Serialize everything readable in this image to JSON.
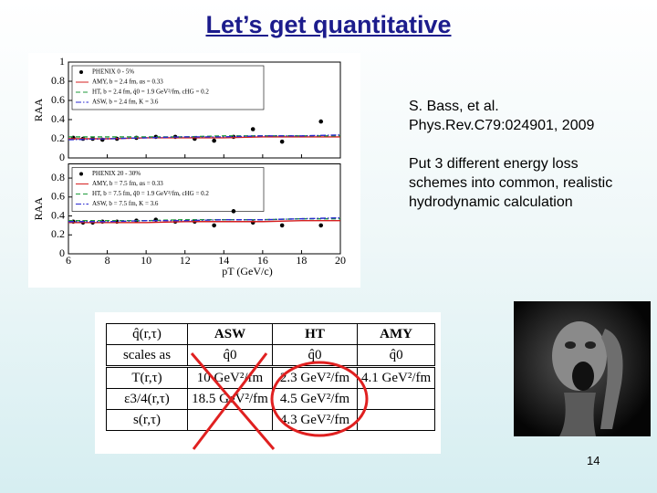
{
  "title": "Let’s get quantitative",
  "figure": {
    "xlim": [
      6,
      20
    ],
    "xticks": [
      6,
      8,
      10,
      12,
      14,
      16,
      18,
      20
    ],
    "xlabel": "pT (GeV/c)",
    "panels": [
      {
        "ylabel": "RAA",
        "ylim": [
          0,
          1
        ],
        "yticks": [
          0,
          0.2,
          0.4,
          0.6,
          0.8,
          1
        ],
        "series": [
          {
            "name": "PHENIX 0 - 5%",
            "color": "#000000",
            "style": "points",
            "x": [
              6.25,
              6.75,
              7.25,
              7.75,
              8.5,
              9.5,
              10.5,
              11.5,
              12.5,
              13.5,
              14.5,
              15.5,
              17,
              19
            ],
            "values": [
              0.21,
              0.2,
              0.2,
              0.19,
              0.2,
              0.21,
              0.22,
              0.22,
              0.2,
              0.18,
              0.22,
              0.3,
              0.17,
              0.38
            ]
          },
          {
            "name": "AMY, b = 2.4 fm, αs = 0.33",
            "color": "#d62020",
            "style": "solid",
            "x": [
              6,
              8,
              10,
              12,
              14,
              16,
              18,
              20
            ],
            "values": [
              0.2,
              0.2,
              0.21,
              0.21,
              0.21,
              0.22,
              0.22,
              0.22
            ]
          },
          {
            "name": "HT, b = 2.4 fm, q̂0 = 1.9 GeV²/fm, cHG = 0.2",
            "color": "#1e9a3a",
            "style": "dashed",
            "x": [
              6,
              8,
              10,
              12,
              14,
              16,
              18,
              20
            ],
            "values": [
              0.22,
              0.22,
              0.22,
              0.22,
              0.23,
              0.23,
              0.23,
              0.23
            ]
          },
          {
            "name": "ASW, b = 2.4 fm, K = 3.6",
            "color": "#2a2ad0",
            "style": "dashdot",
            "x": [
              6,
              8,
              10,
              12,
              14,
              16,
              18,
              20
            ],
            "values": [
              0.19,
              0.2,
              0.21,
              0.22,
              0.22,
              0.23,
              0.23,
              0.24
            ]
          }
        ]
      },
      {
        "ylabel": "RAA",
        "ylim": [
          0,
          0.95
        ],
        "yticks": [
          0,
          0.2,
          0.4,
          0.6,
          0.8
        ],
        "series": [
          {
            "name": "PHENIX 20 - 30%",
            "color": "#000000",
            "style": "points",
            "x": [
              6.25,
              6.75,
              7.25,
              7.75,
              8.5,
              9.5,
              10.5,
              11.5,
              12.5,
              13.5,
              14.5,
              15.5,
              17,
              19
            ],
            "values": [
              0.34,
              0.33,
              0.33,
              0.34,
              0.34,
              0.35,
              0.36,
              0.34,
              0.34,
              0.3,
              0.45,
              0.33,
              0.3,
              0.3
            ]
          },
          {
            "name": "AMY, b = 7.5 fm, αs = 0.33",
            "color": "#d62020",
            "style": "solid",
            "x": [
              6,
              8,
              10,
              12,
              14,
              16,
              18,
              20
            ],
            "values": [
              0.33,
              0.33,
              0.33,
              0.34,
              0.34,
              0.34,
              0.35,
              0.35
            ]
          },
          {
            "name": "HT, b = 7.5 fm, q̂0 = 1.9 GeV²/fm, cHG = 0.2",
            "color": "#1e9a3a",
            "style": "dashed",
            "x": [
              6,
              8,
              10,
              12,
              14,
              16,
              18,
              20
            ],
            "values": [
              0.35,
              0.35,
              0.35,
              0.36,
              0.36,
              0.36,
              0.37,
              0.37
            ]
          },
          {
            "name": "ASW, b = 7.5 fm, K = 3.6",
            "color": "#2a2ad0",
            "style": "dashdot",
            "x": [
              6,
              8,
              10,
              12,
              14,
              16,
              18,
              20
            ],
            "values": [
              0.34,
              0.34,
              0.35,
              0.35,
              0.36,
              0.36,
              0.37,
              0.38
            ]
          }
        ]
      }
    ]
  },
  "reference": [
    "S. Bass, et al.",
    "Phys.Rev.C79:024901, 2009"
  ],
  "description": [
    "Put 3 different energy loss",
    "schemes into common, realistic",
    "hydrodynamic calculation"
  ],
  "table": {
    "rows": [
      [
        "q̂(r,τ)",
        "ASW",
        "HT",
        "AMY"
      ],
      [
        "scales as",
        "q̂0",
        "q̂0",
        "q̂0"
      ],
      [
        "T(r,τ)",
        "10 GeV²/fm",
        "2.3 GeV²/fm",
        "4.1 GeV²/fm"
      ],
      [
        "ε3/4(r,τ)",
        "18.5 GeV²/fm",
        "4.5 GeV²/fm",
        null
      ],
      [
        "s(r,τ)",
        null,
        "4.3 GeV²/fm",
        null
      ]
    ]
  },
  "page_number": "14"
}
